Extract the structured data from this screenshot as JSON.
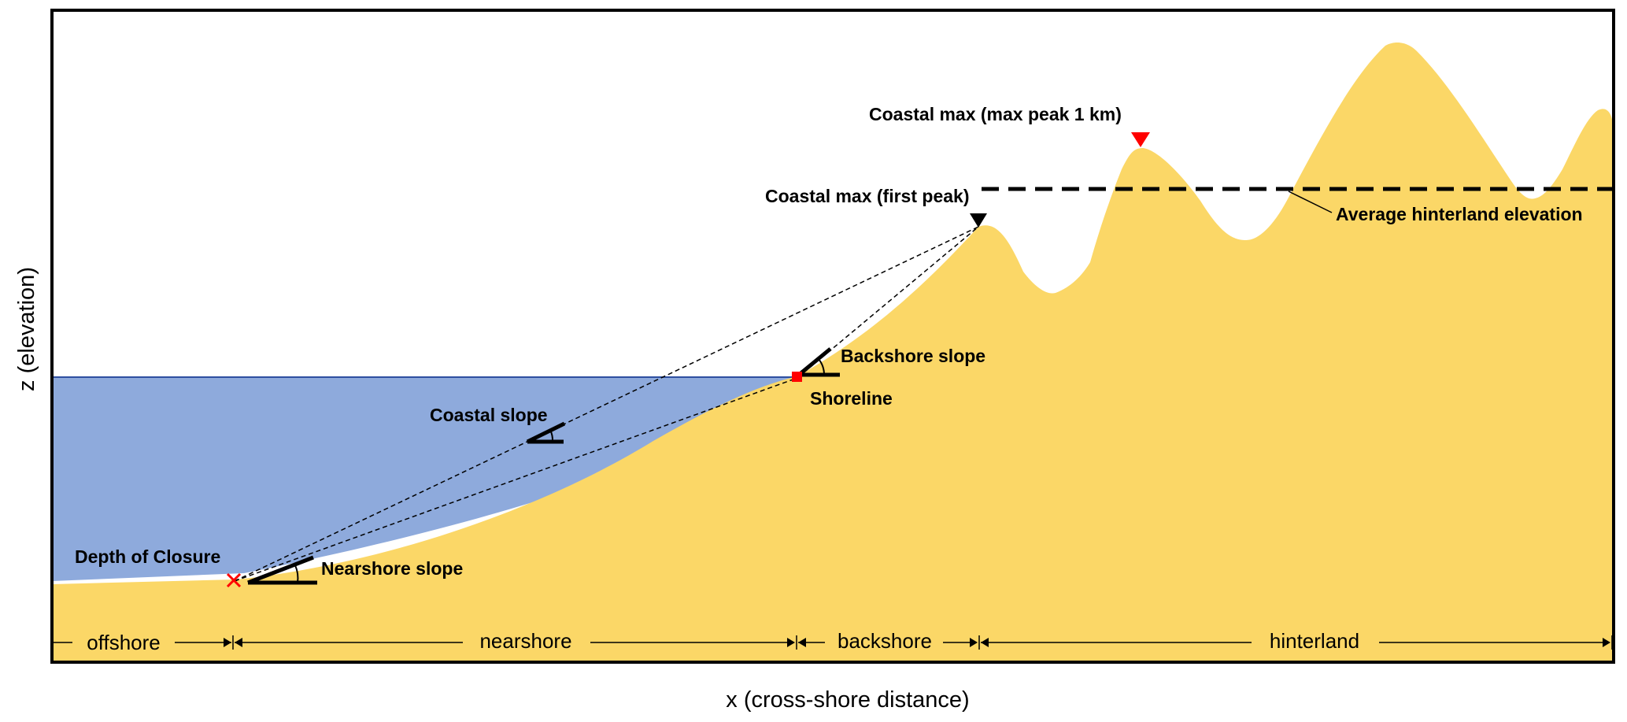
{
  "axes": {
    "x_label": "x (cross-shore distance)",
    "y_label": "z (elevation)"
  },
  "labels": {
    "coastal_max_1km": "Coastal max (max peak 1 km)",
    "coastal_max_first": "Coastal max (first peak)",
    "average_hinterland": "Average hinterland elevation",
    "backshore_slope": "Backshore slope",
    "shoreline": "Shoreline",
    "coastal_slope": "Coastal slope",
    "depth_of_closure": "Depth of Closure",
    "nearshore_slope": "Nearshore slope"
  },
  "zones": {
    "offshore": "offshore",
    "nearshore": "nearshore",
    "backshore": "backshore",
    "hinterland": "hinterland"
  },
  "colors": {
    "land": "#fbd767",
    "water": "#8eaadc",
    "water_line": "#2e4fa0",
    "marker_red": "#ff0000",
    "marker_black": "#000000"
  },
  "icons": {
    "depth_of_closure_marker": "red-x",
    "shoreline_marker": "red-square",
    "first_peak_marker": "black-triangle-down",
    "max_peak_marker": "red-triangle-down"
  }
}
